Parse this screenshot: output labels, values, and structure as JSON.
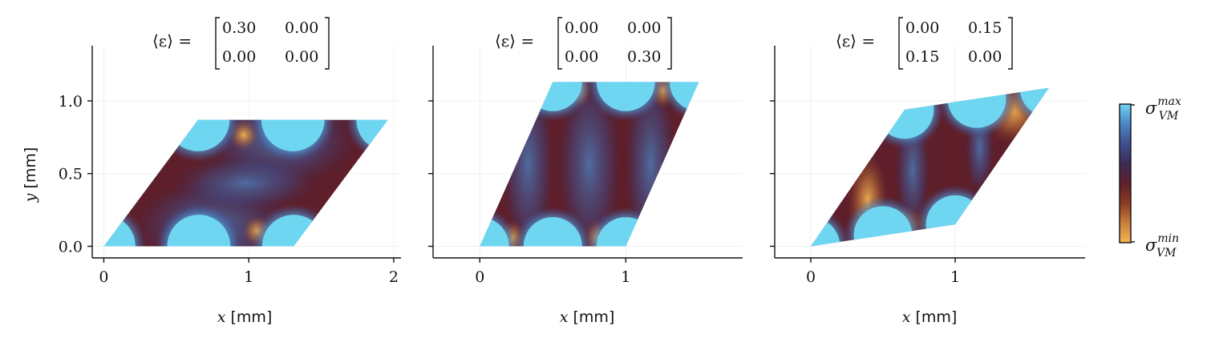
{
  "chart_data": [
    {
      "type": "heatmap",
      "title": {
        "lhs": "⟨ε⟩ =",
        "matrix": [
          [
            "0.30",
            "0.00"
          ],
          [
            "0.00",
            "0.00"
          ]
        ]
      },
      "strain": [
        [
          0.3,
          0.0
        ],
        [
          0.0,
          0.0
        ]
      ],
      "xlabel": {
        "symbol": "x",
        "unit": "[mm]"
      },
      "ylabel": {
        "symbol": "y",
        "unit": "[mm]"
      },
      "xlim": [
        -0.08,
        2.05
      ],
      "ylim": [
        -0.08,
        1.38
      ],
      "xticks": [
        0,
        1,
        2
      ],
      "xtick_labels": [
        "0",
        "1",
        "2"
      ],
      "yticks": [
        0.0,
        0.5,
        1.0
      ],
      "ytick_labels": [
        "0.0",
        "0.5",
        "1.0"
      ],
      "cell_corners": [
        [
          0.0,
          0.0
        ],
        [
          1.31,
          0.0
        ],
        [
          1.96,
          0.87
        ],
        [
          0.65,
          0.87
        ]
      ]
    },
    {
      "type": "heatmap",
      "title": {
        "lhs": "⟨ε⟩ =",
        "matrix": [
          [
            "0.00",
            "0.00"
          ],
          [
            "0.00",
            "0.30"
          ]
        ]
      },
      "strain": [
        [
          0.0,
          0.0
        ],
        [
          0.0,
          0.3
        ]
      ],
      "xlabel": {
        "symbol": "x",
        "unit": "[mm]"
      },
      "xlim": [
        -0.32,
        1.8
      ],
      "ylim": [
        -0.08,
        1.38
      ],
      "xticks": [
        0,
        1
      ],
      "xtick_labels": [
        "0",
        "1"
      ],
      "yticks": [
        0.0,
        0.5,
        1.0
      ],
      "cell_corners": [
        [
          0.0,
          0.0
        ],
        [
          1.0,
          0.0
        ],
        [
          1.5,
          1.13
        ],
        [
          0.5,
          1.13
        ]
      ]
    },
    {
      "type": "heatmap",
      "title": {
        "lhs": "⟨ε⟩ =",
        "matrix": [
          [
            "0.00",
            "0.15"
          ],
          [
            "0.15",
            "0.00"
          ]
        ]
      },
      "strain": [
        [
          0.0,
          0.15
        ],
        [
          0.15,
          0.0
        ]
      ],
      "xlabel": {
        "symbol": "x",
        "unit": "[mm]"
      },
      "xlim": [
        -0.25,
        1.9
      ],
      "ylim": [
        -0.08,
        1.38
      ],
      "xticks": [
        0,
        1
      ],
      "xtick_labels": [
        "0",
        "1"
      ],
      "yticks": [
        0.0,
        0.5,
        1.0
      ],
      "cell_corners": [
        [
          0.0,
          0.0
        ],
        [
          1.0,
          0.15
        ],
        [
          1.65,
          1.09
        ],
        [
          0.65,
          0.94
        ]
      ]
    }
  ],
  "colorbar": {
    "label_max": {
      "base": "σ",
      "sup": "max",
      "sub": "VM"
    },
    "label_min": {
      "base": "σ",
      "sup": "min",
      "sub": "VM"
    },
    "colormap": [
      "#f5b453",
      "#c97f3c",
      "#8a3b24",
      "#5e1f2b",
      "#3b2b55",
      "#3f4f8f",
      "#4a86c6",
      "#6fd6f2"
    ]
  },
  "colors": {
    "max": "#6fd6f2",
    "high": "#4a86c6",
    "mid_blue": "#3f4f8f",
    "dark": "#3b2b55",
    "low": "#6e2430",
    "min": "#f5b453"
  }
}
